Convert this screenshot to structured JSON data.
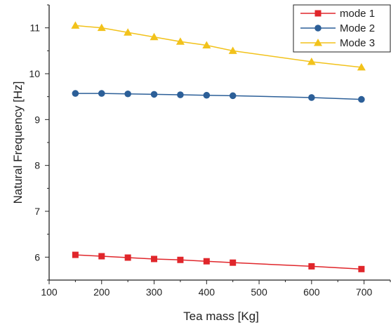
{
  "chart_data": {
    "type": "line",
    "xlabel": "Tea mass [Kg]",
    "ylabel": "Natural Frequency [Hz]",
    "xlim": [
      100,
      750
    ],
    "ylim": [
      5.5,
      11.5
    ],
    "xticks": [
      100,
      200,
      300,
      400,
      500,
      600,
      700
    ],
    "yticks": [
      6,
      7,
      8,
      9,
      10,
      11
    ],
    "grid": false,
    "legend_position": "top-right",
    "series": [
      {
        "name": "mode 1",
        "color": "#e0262b",
        "marker": "square",
        "x": [
          150,
          200,
          250,
          300,
          350,
          400,
          450,
          600,
          695
        ],
        "y": [
          6.05,
          6.02,
          5.99,
          5.96,
          5.94,
          5.91,
          5.88,
          5.8,
          5.74
        ]
      },
      {
        "name": "Mode 2",
        "color": "#2c5f98",
        "marker": "circle",
        "x": [
          150,
          200,
          250,
          300,
          350,
          400,
          450,
          600,
          695
        ],
        "y": [
          9.57,
          9.57,
          9.56,
          9.55,
          9.54,
          9.53,
          9.52,
          9.48,
          9.44
        ]
      },
      {
        "name": "Mode 3",
        "color": "#f2c21b",
        "marker": "triangle",
        "x": [
          150,
          200,
          250,
          300,
          350,
          400,
          450,
          600,
          695
        ],
        "y": [
          11.05,
          11.0,
          10.9,
          10.8,
          10.7,
          10.62,
          10.5,
          10.26,
          10.14
        ]
      }
    ]
  }
}
